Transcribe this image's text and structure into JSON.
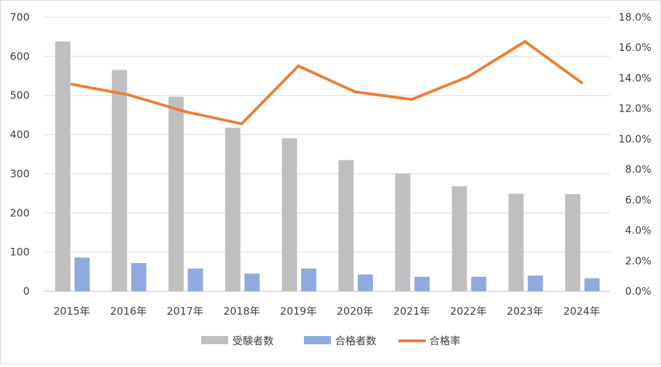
{
  "chart_data": {
    "type": "bar+line",
    "categories": [
      "2015年",
      "2016年",
      "2017年",
      "2018年",
      "2019年",
      "2020年",
      "2021年",
      "2022年",
      "2023年",
      "2024年"
    ],
    "y_left": {
      "ticks": [
        "0",
        "100",
        "200",
        "300",
        "400",
        "500",
        "600",
        "700"
      ],
      "range": [
        0,
        700
      ]
    },
    "y_right": {
      "ticks": [
        "0.0%",
        "2.0%",
        "4.0%",
        "6.0%",
        "8.0%",
        "10.0%",
        "12.0%",
        "14.0%",
        "16.0%",
        "18.0%"
      ],
      "range": [
        0,
        18
      ]
    },
    "series": [
      {
        "name": "受験者数",
        "kind": "bar",
        "axis": "left",
        "color": "#bfbfbf",
        "values": [
          638,
          565,
          497,
          418,
          391,
          335,
          301,
          268,
          249,
          248
        ]
      },
      {
        "name": "合格者数",
        "kind": "bar",
        "axis": "left",
        "color": "#8faadc",
        "values": [
          86,
          72,
          58,
          45,
          58,
          43,
          37,
          37,
          40,
          33
        ]
      },
      {
        "name": "合格率",
        "kind": "line",
        "axis": "right",
        "color": "#ed7d31",
        "values": [
          13.6,
          12.9,
          11.8,
          11.0,
          14.8,
          13.1,
          12.6,
          14.1,
          16.4,
          13.7
        ]
      }
    ],
    "gridlines": true,
    "legend": "bottom"
  }
}
